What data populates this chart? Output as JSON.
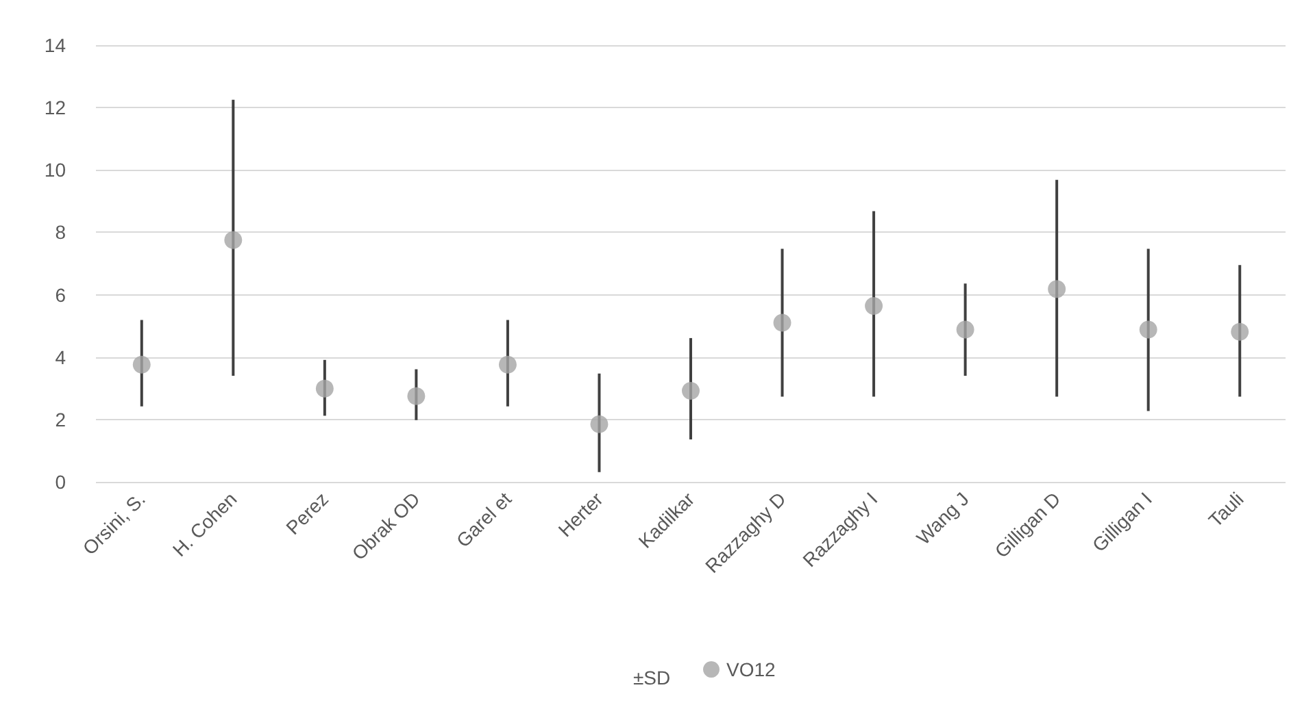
{
  "chart_data": {
    "type": "scatter",
    "categories": [
      "Orsini, S.",
      "H. Cohen",
      "Perez",
      "Obrak OD",
      "Garel et",
      "Herter",
      "Kadilkar",
      "Razzaghy D",
      "Razzaghy I",
      "Wang J",
      "Gilligan D",
      "Gilligan I",
      "Tauli"
    ],
    "series": [
      {
        "name": "VO12",
        "color": "#a5a5a5",
        "values": [
          3.76,
          7.75,
          2.99,
          2.75,
          3.76,
          1.85,
          2.92,
          5.1,
          5.64,
          4.88,
          6.18,
          4.88,
          4.81
        ],
        "errors": [
          [
            2.42,
            5.19
          ],
          [
            3.4,
            12.25
          ],
          [
            2.12,
            3.91
          ],
          [
            1.98,
            3.61
          ],
          [
            2.42,
            5.19
          ],
          [
            0.31,
            3.47
          ],
          [
            1.36,
            4.61
          ],
          [
            2.73,
            7.47
          ],
          [
            2.73,
            8.68
          ],
          [
            3.4,
            6.36
          ],
          [
            2.73,
            9.68
          ],
          [
            2.27,
            7.47
          ],
          [
            2.73,
            6.95
          ]
        ]
      }
    ],
    "annotations": [
      "±SD"
    ],
    "ylim": [
      0,
      14
    ],
    "yticks": [
      0,
      2,
      4,
      6,
      8,
      10,
      12,
      14
    ],
    "grid": "y",
    "legend": "bottom",
    "marker": "circle"
  }
}
